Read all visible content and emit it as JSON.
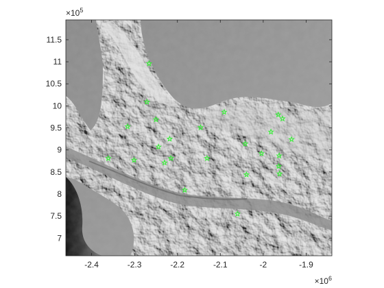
{
  "chart_data": {
    "type": "scatter",
    "title": "",
    "xlabel": "",
    "ylabel": "",
    "x_exponent_label": {
      "base": "×10",
      "power": "6"
    },
    "y_exponent_label": {
      "base": "×10",
      "power": "5"
    },
    "xlim": [
      -2.46,
      -1.84
    ],
    "ylim": [
      6.6,
      11.95
    ],
    "x_ticks": [
      {
        "value": -2.4,
        "label": "-2.4"
      },
      {
        "value": -2.3,
        "label": "-2.3"
      },
      {
        "value": -2.2,
        "label": "-2.2"
      },
      {
        "value": -2.1,
        "label": "-2.1"
      },
      {
        "value": -2.0,
        "label": "-2"
      },
      {
        "value": -1.9,
        "label": "-1.9"
      }
    ],
    "y_ticks": [
      {
        "value": 7,
        "label": "7"
      },
      {
        "value": 7.5,
        "label": "7.5"
      },
      {
        "value": 8,
        "label": "8"
      },
      {
        "value": 8.5,
        "label": "8.5"
      },
      {
        "value": 9,
        "label": "9"
      },
      {
        "value": 9.5,
        "label": "9.5"
      },
      {
        "value": 10,
        "label": "10"
      },
      {
        "value": 10.5,
        "label": "10.5"
      },
      {
        "value": 11,
        "label": "11"
      },
      {
        "value": 11.5,
        "label": "11.5"
      }
    ],
    "marker": "star",
    "marker_color": "#33ee33",
    "background": "grayscale shaded-relief terrain",
    "grid": false,
    "points": [
      {
        "x": -2.266,
        "y": 10.96
      },
      {
        "x": -2.271,
        "y": 10.09
      },
      {
        "x": -2.25,
        "y": 9.69
      },
      {
        "x": -2.316,
        "y": 9.53
      },
      {
        "x": -2.244,
        "y": 9.07
      },
      {
        "x": -2.218,
        "y": 9.25
      },
      {
        "x": -2.361,
        "y": 8.81
      },
      {
        "x": -2.301,
        "y": 8.77
      },
      {
        "x": -2.23,
        "y": 8.71
      },
      {
        "x": -2.215,
        "y": 8.81
      },
      {
        "x": -2.146,
        "y": 9.51
      },
      {
        "x": -2.131,
        "y": 8.81
      },
      {
        "x": -2.091,
        "y": 9.86
      },
      {
        "x": -2.042,
        "y": 9.14
      },
      {
        "x": -2.039,
        "y": 8.44
      },
      {
        "x": -2.004,
        "y": 8.92
      },
      {
        "x": -1.982,
        "y": 9.41
      },
      {
        "x": -1.965,
        "y": 9.8
      },
      {
        "x": -1.955,
        "y": 9.71
      },
      {
        "x": -1.934,
        "y": 9.24
      },
      {
        "x": -1.963,
        "y": 8.87
      },
      {
        "x": -1.964,
        "y": 8.63
      },
      {
        "x": -1.962,
        "y": 8.46
      },
      {
        "x": -2.183,
        "y": 8.09
      },
      {
        "x": -2.06,
        "y": 7.55
      }
    ]
  }
}
